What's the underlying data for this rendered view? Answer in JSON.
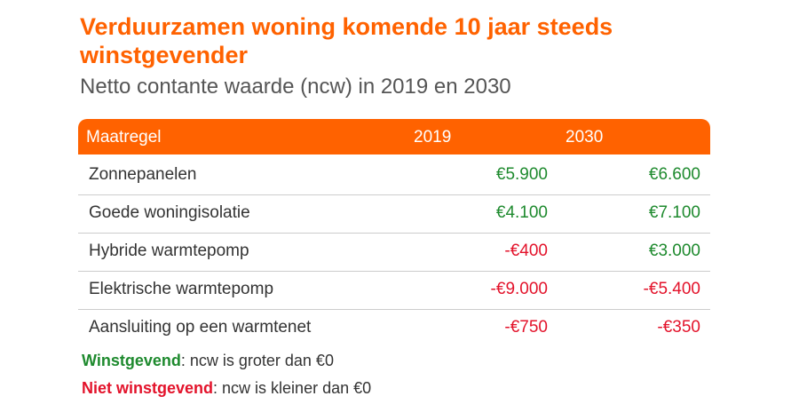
{
  "header": {
    "title": "Verduurzamen woning komende 10 jaar steeds winstgevender",
    "subtitle": "Netto contante waarde (ncw) in 2019 en 2030"
  },
  "table": {
    "columns": [
      "Maatregel",
      "2019",
      "2030"
    ],
    "header_color": "#ff6200",
    "rows": [
      [
        "Zonnepanelen",
        "€5.900",
        "€6.600"
      ],
      [
        "Goede woningisolatie",
        "€4.100",
        "€7.100"
      ],
      [
        "Hybride warmtepomp",
        "-€400",
        "€3.000"
      ],
      [
        "Elektrische warmtepomp",
        "-€9.000",
        "-€5.400"
      ],
      [
        "Aansluiting op een warmtenet",
        "-€750",
        "-€350"
      ]
    ]
  },
  "legend": [
    {
      "term": "Winstgevend",
      "text": ": ncw is groter dan €0",
      "color": "#1e8a2e"
    },
    {
      "term": "Niet winstgevend",
      "text": ": ncw is kleiner dan €0",
      "color": "#e3132b"
    }
  ]
}
